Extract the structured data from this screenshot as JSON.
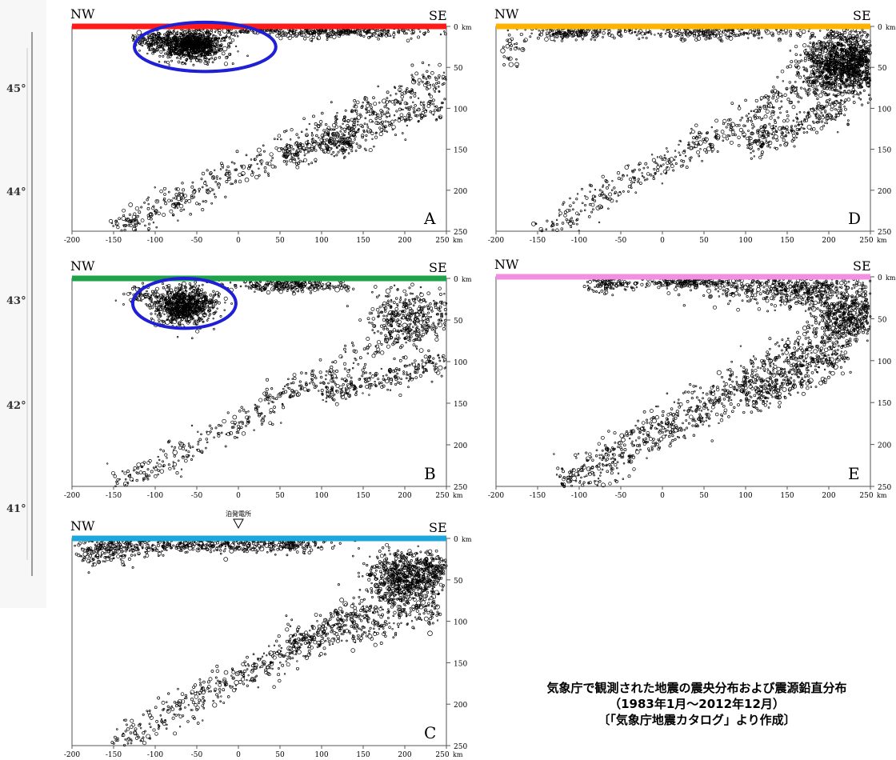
{
  "left_map_strip": {
    "latitude_labels": [
      "45°",
      "44°",
      "43°",
      "42°",
      "41°"
    ]
  },
  "chart_data": [
    {
      "id": "A",
      "type": "scatter",
      "panel_label": "A",
      "left_label": "NW",
      "right_label": "SE",
      "profile_color": "#ff1a1a",
      "xlabel": "",
      "ylabel": "",
      "x_unit": "km",
      "y_unit": "km",
      "xlim": [
        -200,
        250
      ],
      "ylim": [
        250,
        0
      ],
      "x_ticks": [
        -200,
        -150,
        -100,
        -50,
        0,
        50,
        100,
        150,
        200,
        250
      ],
      "y_ticks": [
        0,
        50,
        100,
        150,
        200,
        250
      ],
      "x_tick_labels": [
        "-200",
        "-150",
        "-100",
        "-50",
        "0",
        "50",
        "100",
        "150",
        "200",
        "250"
      ],
      "y_tick_labels": [
        "0",
        "50",
        "100",
        "150",
        "200",
        "250"
      ],
      "highlight_ellipse": {
        "color": "#1f1fd6",
        "cx": -40,
        "cy": 25,
        "rx": 85,
        "ry": 30
      },
      "series": [
        {
          "kind": "cluster",
          "x": -55,
          "y": 22,
          "sx": 20,
          "sy": 9,
          "n": 900
        },
        {
          "kind": "cluster",
          "x": -100,
          "y": 16,
          "sx": 14,
          "sy": 6,
          "n": 120
        },
        {
          "kind": "cluster",
          "x": 120,
          "y": 6,
          "sx": 60,
          "sy": 4,
          "n": 350
        },
        {
          "kind": "cluster",
          "x": 20,
          "y": 4,
          "sx": 25,
          "sy": 3,
          "n": 80
        },
        {
          "kind": "band",
          "x0": -150,
          "y0": 250,
          "x1": 250,
          "y1": 60,
          "w": 10,
          "n": 550
        },
        {
          "kind": "band",
          "x0": 50,
          "y0": 160,
          "x1": 250,
          "y1": 95,
          "w": 8,
          "n": 260
        },
        {
          "kind": "cluster",
          "x": 130,
          "y": 145,
          "sx": 12,
          "sy": 6,
          "n": 70
        }
      ]
    },
    {
      "id": "B",
      "type": "scatter",
      "panel_label": "B",
      "left_label": "NW",
      "right_label": "SE",
      "profile_color": "#1fa34a",
      "xlabel": "",
      "ylabel": "",
      "x_unit": "km",
      "y_unit": "km",
      "xlim": [
        -200,
        250
      ],
      "ylim": [
        250,
        0
      ],
      "x_ticks": [
        -200,
        -150,
        -100,
        -50,
        0,
        50,
        100,
        150,
        200,
        250
      ],
      "y_ticks": [
        0,
        50,
        100,
        150,
        200,
        250
      ],
      "x_tick_labels": [
        "-200",
        "-150",
        "-100",
        "-50",
        "0",
        "50",
        "100",
        "150",
        "200",
        "250"
      ],
      "y_tick_labels": [
        "0",
        "50",
        "100",
        "150",
        "200",
        "250"
      ],
      "highlight_ellipse": {
        "color": "#1f1fd6",
        "cx": -65,
        "cy": 30,
        "rx": 62,
        "ry": 30
      },
      "series": [
        {
          "kind": "cluster",
          "x": -65,
          "y": 32,
          "sx": 18,
          "sy": 11,
          "n": 800
        },
        {
          "kind": "cluster",
          "x": -115,
          "y": 20,
          "sx": 12,
          "sy": 6,
          "n": 60
        },
        {
          "kind": "cluster",
          "x": 60,
          "y": 8,
          "sx": 40,
          "sy": 4,
          "n": 250
        },
        {
          "kind": "cluster",
          "x": 200,
          "y": 45,
          "sx": 25,
          "sy": 18,
          "n": 300
        },
        {
          "kind": "band",
          "x0": -150,
          "y0": 250,
          "x1": 250,
          "y1": 40,
          "w": 9,
          "n": 420
        },
        {
          "kind": "band",
          "x0": 100,
          "y0": 140,
          "x1": 250,
          "y1": 100,
          "w": 7,
          "n": 230
        }
      ]
    },
    {
      "id": "C",
      "type": "scatter",
      "panel_label": "C",
      "left_label": "NW",
      "right_label": "SE",
      "profile_color": "#1ea7dd",
      "xlabel": "",
      "ylabel": "",
      "x_unit": "km",
      "y_unit": "km",
      "xlim": [
        -200,
        250
      ],
      "ylim": [
        250,
        0
      ],
      "x_ticks": [
        -200,
        -150,
        -100,
        -50,
        0,
        50,
        100,
        150,
        200,
        250
      ],
      "y_ticks": [
        0,
        50,
        100,
        150,
        200,
        250
      ],
      "x_tick_labels": [
        "-200",
        "-150",
        "-100",
        "-50",
        "0",
        "50",
        "100",
        "150",
        "200",
        "250"
      ],
      "y_tick_labels": [
        "0",
        "50",
        "100",
        "150",
        "200",
        "250"
      ],
      "marker": {
        "x": 0,
        "label": "泊発電所"
      },
      "series": [
        {
          "kind": "cluster",
          "x": -160,
          "y": 12,
          "sx": 25,
          "sy": 10,
          "n": 220
        },
        {
          "kind": "cluster",
          "x": -40,
          "y": 8,
          "sx": 60,
          "sy": 5,
          "n": 380
        },
        {
          "kind": "cluster",
          "x": 70,
          "y": 8,
          "sx": 20,
          "sy": 4,
          "n": 90
        },
        {
          "kind": "cluster",
          "x": 205,
          "y": 45,
          "sx": 25,
          "sy": 16,
          "n": 650
        },
        {
          "kind": "band",
          "x0": -150,
          "y0": 250,
          "x1": 250,
          "y1": 30,
          "w": 10,
          "n": 600
        },
        {
          "kind": "band",
          "x0": 60,
          "y0": 130,
          "x1": 240,
          "y1": 80,
          "w": 10,
          "n": 300
        }
      ]
    },
    {
      "id": "D",
      "type": "scatter",
      "panel_label": "D",
      "left_label": "NW",
      "right_label": "SE",
      "profile_color": "#ffb300",
      "xlabel": "",
      "ylabel": "",
      "x_unit": "km",
      "y_unit": "km",
      "xlim": [
        -200,
        250
      ],
      "ylim": [
        250,
        0
      ],
      "x_ticks": [
        -200,
        -150,
        -100,
        -50,
        0,
        50,
        100,
        150,
        200,
        250
      ],
      "y_ticks": [
        0,
        50,
        100,
        150,
        200,
        250
      ],
      "x_tick_labels": [
        "-200",
        "-150",
        "-100",
        "-50",
        "0",
        "50",
        "100",
        "150",
        "200",
        "250"
      ],
      "y_tick_labels": [
        "0",
        "50",
        "100",
        "150",
        "200",
        "250"
      ],
      "series": [
        {
          "kind": "cluster",
          "x": -110,
          "y": 8,
          "sx": 25,
          "sy": 4,
          "n": 150
        },
        {
          "kind": "cluster",
          "x": 50,
          "y": 8,
          "sx": 70,
          "sy": 4,
          "n": 250
        },
        {
          "kind": "cluster",
          "x": 220,
          "y": 45,
          "sx": 25,
          "sy": 20,
          "n": 1200
        },
        {
          "kind": "cluster",
          "x": -180,
          "y": 30,
          "sx": 10,
          "sy": 15,
          "n": 30
        },
        {
          "kind": "band",
          "x0": -150,
          "y0": 250,
          "x1": 250,
          "y1": 30,
          "w": 9,
          "n": 500
        },
        {
          "kind": "band",
          "x0": 100,
          "y0": 145,
          "x1": 220,
          "y1": 100,
          "w": 9,
          "n": 260
        }
      ]
    },
    {
      "id": "E",
      "type": "scatter",
      "panel_label": "E",
      "left_label": "NW",
      "right_label": "SE",
      "profile_color": "#f28fe0",
      "xlabel": "",
      "ylabel": "",
      "x_unit": "km",
      "y_unit": "km",
      "xlim": [
        -200,
        250
      ],
      "ylim": [
        250,
        0
      ],
      "x_ticks": [
        -200,
        -150,
        -100,
        -50,
        0,
        50,
        100,
        150,
        200,
        250
      ],
      "y_ticks": [
        0,
        50,
        100,
        150,
        200,
        250
      ],
      "x_tick_labels": [
        "-200",
        "-150",
        "-100",
        "-50",
        "0",
        "50",
        "100",
        "150",
        "200",
        "250"
      ],
      "y_tick_labels": [
        "0",
        "50",
        "100",
        "150",
        "200",
        "250"
      ],
      "series": [
        {
          "kind": "cluster",
          "x": -60,
          "y": 8,
          "sx": 15,
          "sy": 5,
          "n": 120
        },
        {
          "kind": "cluster",
          "x": 30,
          "y": 6,
          "sx": 30,
          "sy": 4,
          "n": 200
        },
        {
          "kind": "cluster",
          "x": 160,
          "y": 15,
          "sx": 45,
          "sy": 10,
          "n": 500
        },
        {
          "kind": "cluster",
          "x": 220,
          "y": 45,
          "sx": 20,
          "sy": 15,
          "n": 350
        },
        {
          "kind": "band",
          "x0": -120,
          "y0": 250,
          "x1": 250,
          "y1": 40,
          "w": 12,
          "n": 900
        },
        {
          "kind": "band",
          "x0": 100,
          "y0": 150,
          "x1": 220,
          "y1": 90,
          "w": 10,
          "n": 300
        }
      ]
    }
  ],
  "caption": {
    "line1": "気象庁で観測された地震の震央分布および震源鉛直分布",
    "line2": "（1983年1月～2012年12月）",
    "line3": "〔「気象庁地震カタログ」より作成〕"
  }
}
